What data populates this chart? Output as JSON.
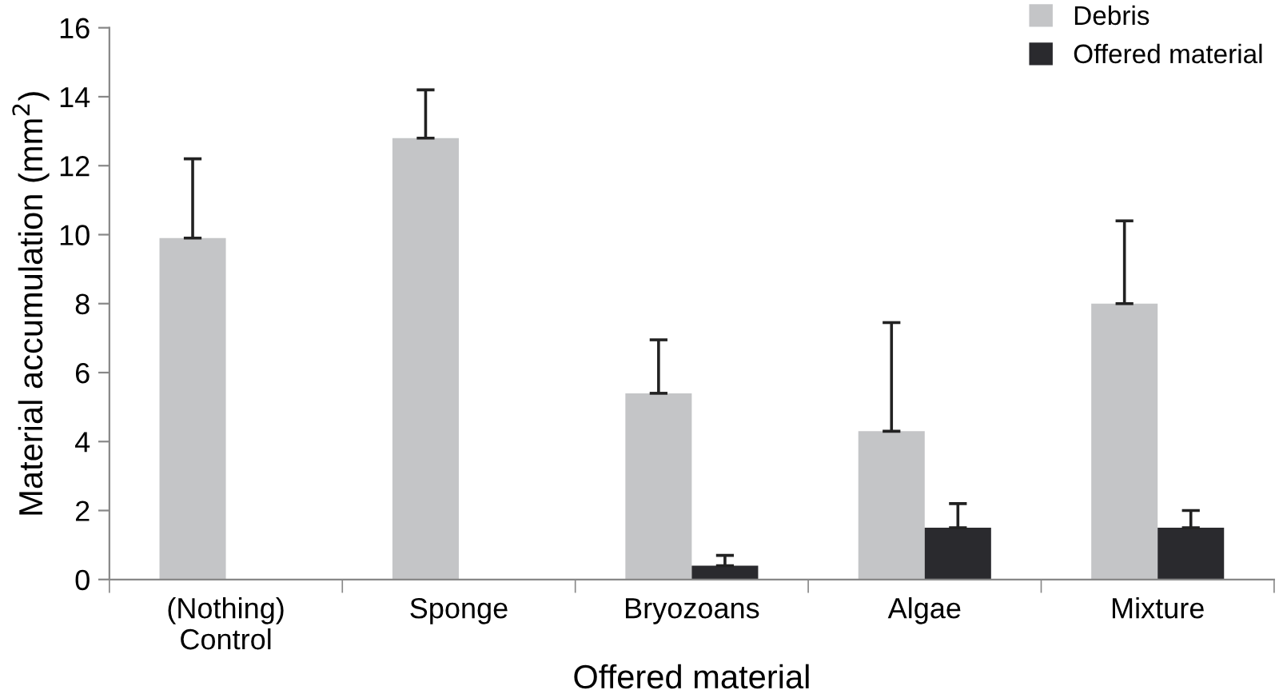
{
  "chart_data": {
    "type": "bar",
    "xlabel": "Offered material",
    "ylabel": "Material accumulation (mm$^{2}$)",
    "categories": [
      "(Nothing)\nControl",
      "Sponge",
      "Bryozoans",
      "Algae",
      "Mixture"
    ],
    "series": [
      {
        "name": "Debris",
        "color": "#c4c5c7",
        "values": [
          9.9,
          12.8,
          5.4,
          4.3,
          8.0
        ],
        "errors": [
          [
            9.9,
            12.2
          ],
          [
            12.8,
            14.2
          ],
          [
            5.4,
            6.95
          ],
          [
            4.3,
            7.45
          ],
          [
            8.0,
            10.4
          ]
        ]
      },
      {
        "name": "Offered material",
        "color": "#2a2a2e",
        "values": [
          null,
          null,
          0.4,
          1.5,
          1.5
        ],
        "errors": [
          null,
          null,
          [
            0.4,
            0.7
          ],
          [
            1.5,
            2.2
          ],
          [
            1.5,
            2.0
          ]
        ]
      }
    ],
    "ylim": [
      0,
      16
    ],
    "yticks": [
      0,
      2,
      4,
      6,
      8,
      10,
      12,
      14,
      16
    ],
    "grid": false,
    "legend": "top right"
  }
}
